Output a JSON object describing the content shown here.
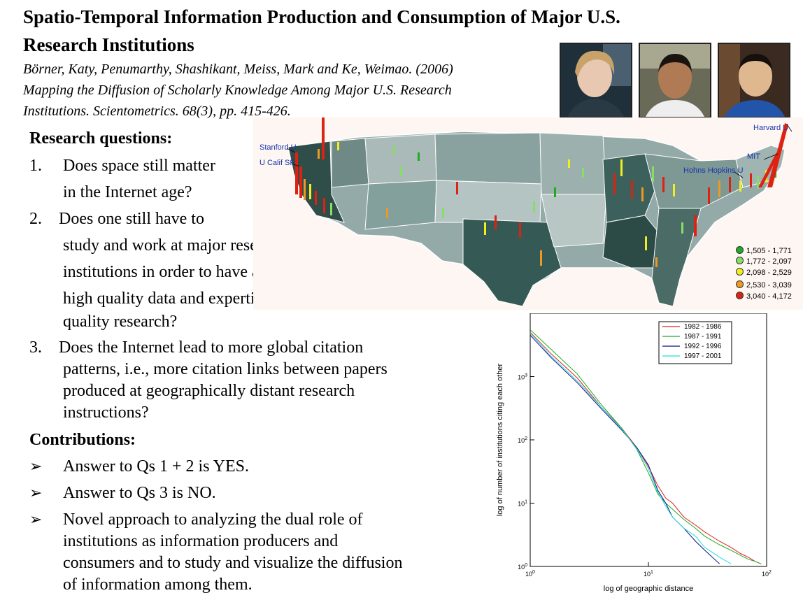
{
  "title_line1": "Spatio-Temporal Information Production and Consumption of Major U.S.",
  "title_line2": "Research Institutions",
  "citation": [
    "Börner, Katy, Penumarthy, Shashikant, Meiss, Mark and Ke, Weimao. (2006)",
    "Mapping the Diffusion of Scholarly Knowledge Among Major U.S. Research",
    "Institutions. Scientometrics. 68(3), pp. 415-426."
  ],
  "research_heading": "Research questions:",
  "questions": [
    {
      "num": "1.",
      "lines": [
        "Does space still matter",
        "in the Internet age?"
      ]
    },
    {
      "num": "2.",
      "lines": [
        "Does one still have to",
        "study and work at major research",
        "institutions in order to have access to",
        "high quality data and expertise and to produce high",
        "quality research?"
      ]
    },
    {
      "num": "3.",
      "lines": [
        "Does the Internet lead to more global citation",
        "patterns, i.e., more citation links between papers",
        "produced at geographically distant research",
        "instructions?"
      ]
    }
  ],
  "contributions_heading": "Contributions:",
  "contributions": [
    {
      "lines": [
        "Answer to Qs 1 + 2 is YES."
      ]
    },
    {
      "lines": [
        "Answer to Qs 3 is NO."
      ]
    },
    {
      "lines": [
        "Novel approach to analyzing the dual role of",
        "institutions as information producers and",
        "consumers and to study and visualize the diffusion",
        "of information among them."
      ]
    }
  ],
  "map": {
    "labels": {
      "stanford": "Stanford U",
      "ucsf": "U Calif SF",
      "harvard": "Harvard U",
      "mit": "MIT",
      "hopkins": "Hohns Hopkins U"
    },
    "legend": [
      {
        "range": "1,505 - 1,771",
        "color": "#22aa22"
      },
      {
        "range": "1,772 - 2,097",
        "color": "#88dd66"
      },
      {
        "range": "2,098 - 2,529",
        "color": "#eeee22"
      },
      {
        "range": "2,530 - 3,039",
        "color": "#ee9922"
      },
      {
        "range": "3,040 - 4,172",
        "color": "#dd2211"
      }
    ]
  },
  "chart_data": {
    "type": "line",
    "xlabel": "log of geographic distance",
    "ylabel": "log of number of institutions citing each other",
    "x_scale": "log",
    "y_scale": "log",
    "xlim": [
      1,
      100
    ],
    "ylim": [
      1,
      10000
    ],
    "x_ticks": [
      {
        "base": "10",
        "exp": "0"
      },
      {
        "base": "10",
        "exp": "1"
      },
      {
        "base": "10",
        "exp": "2"
      }
    ],
    "y_ticks": [
      {
        "base": "10",
        "exp": "0"
      },
      {
        "base": "10",
        "exp": "1"
      },
      {
        "base": "10",
        "exp": "2"
      },
      {
        "base": "10",
        "exp": "3"
      }
    ],
    "legend_position": "top-right",
    "series": [
      {
        "name": "1982 - 1986",
        "color": "#dd2222",
        "x": [
          1.0,
          1.5,
          2.5,
          4,
          6,
          8,
          10,
          12,
          14,
          16,
          20,
          25,
          30,
          40,
          50,
          60,
          70,
          80,
          90
        ],
        "y": [
          5000,
          2300,
          950,
          330,
          150,
          75,
          38,
          19,
          12,
          10,
          6,
          4.5,
          3.5,
          2.5,
          2,
          1.6,
          1.4,
          1.2,
          1.1
        ]
      },
      {
        "name": "1987 - 1991",
        "color": "#22aa22",
        "x": [
          1.0,
          1.5,
          2.5,
          4,
          6,
          8,
          10,
          12,
          14,
          16,
          20,
          25,
          30,
          40,
          50,
          60,
          70,
          80,
          90
        ],
        "y": [
          5500,
          2700,
          1100,
          360,
          150,
          70,
          30,
          14,
          10,
          8,
          5.5,
          4,
          3,
          2.2,
          1.8,
          1.5,
          1.3,
          1.2,
          1.1
        ]
      },
      {
        "name": "1992 - 1996",
        "color": "#111188",
        "x": [
          1.0,
          1.5,
          2.5,
          4,
          6,
          8,
          10,
          12,
          14,
          16,
          20,
          25,
          30,
          40
        ],
        "y": [
          4500,
          2000,
          800,
          310,
          140,
          75,
          40,
          16,
          10,
          6,
          4,
          2.5,
          1.8,
          1.1
        ]
      },
      {
        "name": "1997 - 2001",
        "color": "#22dddd",
        "x": [
          1.0,
          1.5,
          2.5,
          4,
          6,
          8,
          10,
          12,
          14,
          16,
          20,
          25,
          30,
          40,
          50
        ],
        "y": [
          4800,
          2100,
          850,
          330,
          145,
          72,
          35,
          15,
          9,
          6,
          4,
          3,
          2,
          1.4,
          1.1
        ]
      }
    ]
  }
}
